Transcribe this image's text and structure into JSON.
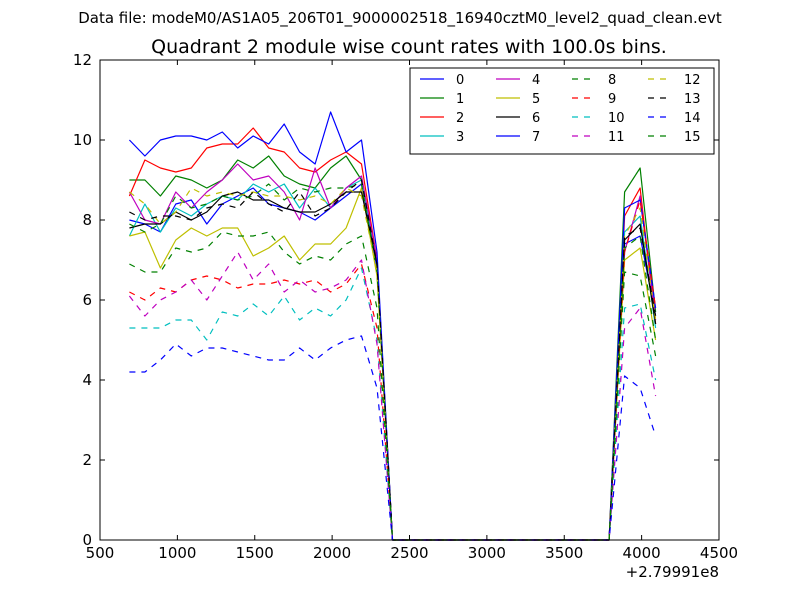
{
  "suptitle": "Data file: modeM0/AS1A05_206T01_9000002518_16940cztM0_level2_quad_clean.evt",
  "chart_data": {
    "type": "line",
    "title": "Quadrant 2 module wise count rates with 100.0s bins.",
    "xlabel": "",
    "ylabel": "",
    "x_offset_label": "+2.79991e8",
    "xlim": [
      500,
      4500
    ],
    "ylim": [
      0,
      12
    ],
    "xticks": [
      500,
      1000,
      1500,
      2000,
      2500,
      3000,
      3500,
      4000,
      4500
    ],
    "yticks": [
      0,
      2,
      4,
      6,
      8,
      10,
      12
    ],
    "legend_position": "top-right",
    "legend_columns": 4,
    "x": [
      690,
      790,
      890,
      990,
      1090,
      1190,
      1290,
      1390,
      1490,
      1590,
      1690,
      1790,
      1890,
      1990,
      2090,
      2190,
      2290,
      2390,
      3790,
      3890,
      3990,
      4090
    ],
    "gap_after_index": 17,
    "series": [
      {
        "name": "0",
        "color": "#0000ff",
        "dash": "solid",
        "values": [
          8.0,
          7.9,
          7.7,
          8.4,
          8.5,
          7.9,
          8.4,
          8.6,
          8.8,
          8.4,
          8.3,
          8.2,
          8.0,
          8.3,
          8.6,
          8.9,
          6.8,
          0,
          0,
          7.4,
          7.6,
          5.6
        ]
      },
      {
        "name": "1",
        "color": "#008000",
        "dash": "solid",
        "values": [
          9.0,
          9.0,
          8.6,
          9.1,
          9.0,
          8.8,
          9.0,
          9.5,
          9.3,
          9.6,
          9.1,
          8.9,
          8.8,
          9.3,
          9.6,
          9.0,
          7.0,
          0,
          0,
          8.7,
          9.3,
          5.7
        ]
      },
      {
        "name": "2",
        "color": "#ff0000",
        "dash": "solid",
        "values": [
          8.6,
          9.5,
          9.3,
          9.2,
          9.3,
          9.8,
          9.9,
          9.9,
          10.3,
          9.8,
          9.7,
          9.3,
          9.2,
          9.5,
          9.7,
          9.4,
          7.0,
          0,
          0,
          8.1,
          8.8,
          5.4
        ]
      },
      {
        "name": "3",
        "color": "#00bfbf",
        "dash": "solid",
        "values": [
          7.6,
          8.4,
          7.7,
          8.3,
          8.1,
          8.4,
          8.6,
          8.5,
          8.9,
          8.7,
          8.9,
          8.3,
          8.8,
          8.3,
          8.8,
          9.0,
          6.9,
          0,
          0,
          7.7,
          8.1,
          5.3
        ]
      },
      {
        "name": "4",
        "color": "#bf00bf",
        "dash": "solid",
        "values": [
          8.7,
          8.0,
          7.9,
          8.7,
          8.3,
          8.7,
          9.0,
          9.4,
          9.0,
          9.1,
          8.7,
          8.0,
          9.3,
          8.3,
          8.8,
          9.1,
          7.0,
          0,
          0,
          7.2,
          8.6,
          5.5
        ]
      },
      {
        "name": "5",
        "color": "#bfbf00",
        "dash": "solid",
        "values": [
          7.6,
          7.7,
          6.8,
          7.5,
          7.8,
          7.6,
          7.8,
          7.8,
          7.1,
          7.3,
          7.6,
          7.0,
          7.4,
          7.4,
          7.8,
          8.8,
          6.6,
          0,
          0,
          7.0,
          7.3,
          5.0
        ]
      },
      {
        "name": "6",
        "color": "#000000",
        "dash": "solid",
        "values": [
          7.8,
          7.9,
          7.9,
          8.2,
          8.0,
          8.2,
          8.6,
          8.7,
          8.5,
          8.5,
          8.3,
          8.2,
          8.2,
          8.4,
          8.7,
          8.7,
          6.9,
          0,
          0,
          7.5,
          7.9,
          5.4
        ]
      },
      {
        "name": "7",
        "color": "#0000ff",
        "dash": "solid",
        "values": [
          10.0,
          9.6,
          10.0,
          10.1,
          10.1,
          10.0,
          10.2,
          9.8,
          10.1,
          9.9,
          10.4,
          9.7,
          9.4,
          10.7,
          9.7,
          10.0,
          7.2,
          0,
          0,
          8.3,
          8.5,
          5.8
        ]
      },
      {
        "name": "8",
        "color": "#008000",
        "dash": "dashed",
        "values": [
          7.9,
          7.7,
          7.9,
          8.6,
          8.3,
          8.4,
          8.6,
          8.5,
          8.6,
          8.9,
          8.5,
          8.8,
          8.7,
          8.8,
          8.8,
          8.9,
          6.7,
          0,
          0,
          7.3,
          7.6,
          5.0
        ]
      },
      {
        "name": "9",
        "color": "#ff0000",
        "dash": "dashed",
        "values": [
          6.2,
          6.0,
          6.3,
          6.2,
          6.5,
          6.6,
          6.5,
          6.3,
          6.4,
          6.4,
          6.5,
          6.4,
          6.5,
          6.2,
          6.4,
          6.9,
          5.3,
          0,
          0,
          7.2,
          8.5,
          5.8
        ]
      },
      {
        "name": "10",
        "color": "#00bfbf",
        "dash": "dashed",
        "values": [
          5.3,
          5.3,
          5.3,
          5.5,
          5.5,
          5.0,
          5.7,
          5.6,
          5.9,
          5.6,
          6.1,
          5.5,
          5.8,
          5.6,
          6.0,
          6.8,
          5.0,
          0,
          0,
          5.8,
          5.9,
          4.0
        ]
      },
      {
        "name": "11",
        "color": "#bf00bf",
        "dash": "dashed",
        "values": [
          6.1,
          5.6,
          6.0,
          6.2,
          6.5,
          6.0,
          6.6,
          7.2,
          6.5,
          6.9,
          6.2,
          6.5,
          6.2,
          6.3,
          6.5,
          7.0,
          4.9,
          0,
          0,
          5.3,
          5.8,
          3.6
        ]
      },
      {
        "name": "12",
        "color": "#bfbf00",
        "dash": "dashed",
        "values": [
          8.7,
          8.4,
          7.9,
          8.2,
          8.8,
          8.6,
          8.7,
          8.6,
          8.7,
          8.6,
          8.6,
          8.5,
          8.6,
          8.4,
          8.8,
          8.6,
          6.7,
          0,
          0,
          7.6,
          8.3,
          5.5
        ]
      },
      {
        "name": "13",
        "color": "#000000",
        "dash": "dashed",
        "values": [
          8.2,
          8.0,
          8.1,
          8.1,
          8.0,
          8.3,
          8.4,
          8.3,
          8.7,
          8.4,
          8.2,
          8.7,
          8.1,
          8.3,
          8.7,
          9.0,
          6.9,
          0,
          0,
          7.6,
          7.8,
          5.6
        ]
      },
      {
        "name": "14",
        "color": "#0000ff",
        "dash": "dashed",
        "values": [
          4.2,
          4.2,
          4.5,
          4.9,
          4.6,
          4.8,
          4.8,
          4.7,
          4.6,
          4.5,
          4.5,
          4.8,
          4.5,
          4.8,
          5.0,
          5.1,
          3.8,
          0,
          0,
          4.1,
          3.8,
          2.6
        ]
      },
      {
        "name": "15",
        "color": "#008000",
        "dash": "dashed",
        "values": [
          6.9,
          6.7,
          6.7,
          7.3,
          7.2,
          7.3,
          7.7,
          7.6,
          7.6,
          7.7,
          7.2,
          6.9,
          7.1,
          7.0,
          7.4,
          7.6,
          5.8,
          0,
          0,
          6.7,
          6.6,
          4.6
        ]
      }
    ]
  }
}
